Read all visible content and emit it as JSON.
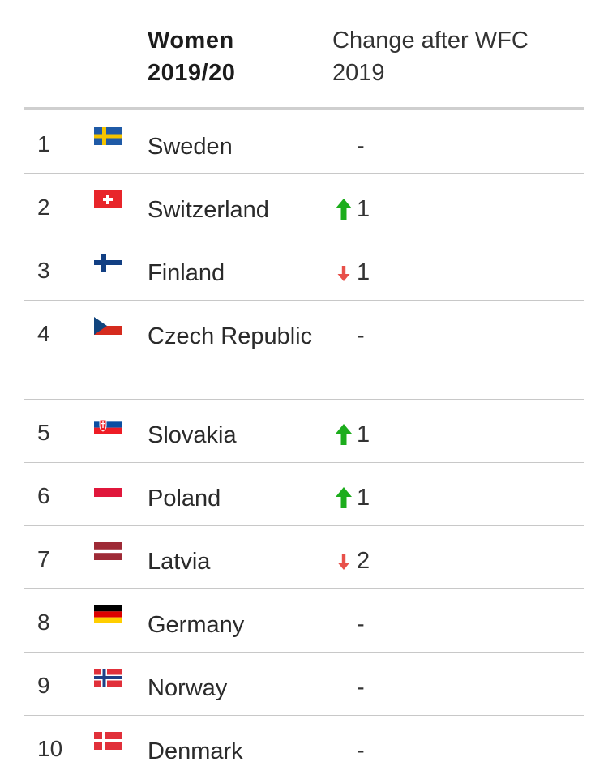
{
  "header": {
    "col_name_line1": "Women",
    "col_name_line2": "2019/20",
    "col_change_line1": "Change after WFC",
    "col_change_line2": "2019"
  },
  "colors": {
    "up": "#1cad1c",
    "down": "#e8504a",
    "rule": "#cfcfcf",
    "divider": "#c8c8c8"
  },
  "rows": [
    {
      "rank": "1",
      "country": "Sweden",
      "flag": "sweden-flag-icon",
      "change_dir": "none",
      "change_value": "-"
    },
    {
      "rank": "2",
      "country": "Switzerland",
      "flag": "switzerland-flag-icon",
      "change_dir": "up",
      "change_value": "1"
    },
    {
      "rank": "3",
      "country": "Finland",
      "flag": "finland-flag-icon",
      "change_dir": "down",
      "change_value": "1"
    },
    {
      "rank": "4",
      "country": "Czech Republic",
      "flag": "czech-republic-flag-icon",
      "change_dir": "none",
      "change_value": "-"
    },
    {
      "rank": "5",
      "country": "Slovakia",
      "flag": "slovakia-flag-icon",
      "change_dir": "up",
      "change_value": "1"
    },
    {
      "rank": "6",
      "country": "Poland",
      "flag": "poland-flag-icon",
      "change_dir": "up",
      "change_value": "1"
    },
    {
      "rank": "7",
      "country": "Latvia",
      "flag": "latvia-flag-icon",
      "change_dir": "down",
      "change_value": "2"
    },
    {
      "rank": "8",
      "country": "Germany",
      "flag": "germany-flag-icon",
      "change_dir": "none",
      "change_value": "-"
    },
    {
      "rank": "9",
      "country": "Norway",
      "flag": "norway-flag-icon",
      "change_dir": "none",
      "change_value": "-"
    },
    {
      "rank": "10",
      "country": "Denmark",
      "flag": "denmark-flag-icon",
      "change_dir": "none",
      "change_value": "-"
    }
  ]
}
